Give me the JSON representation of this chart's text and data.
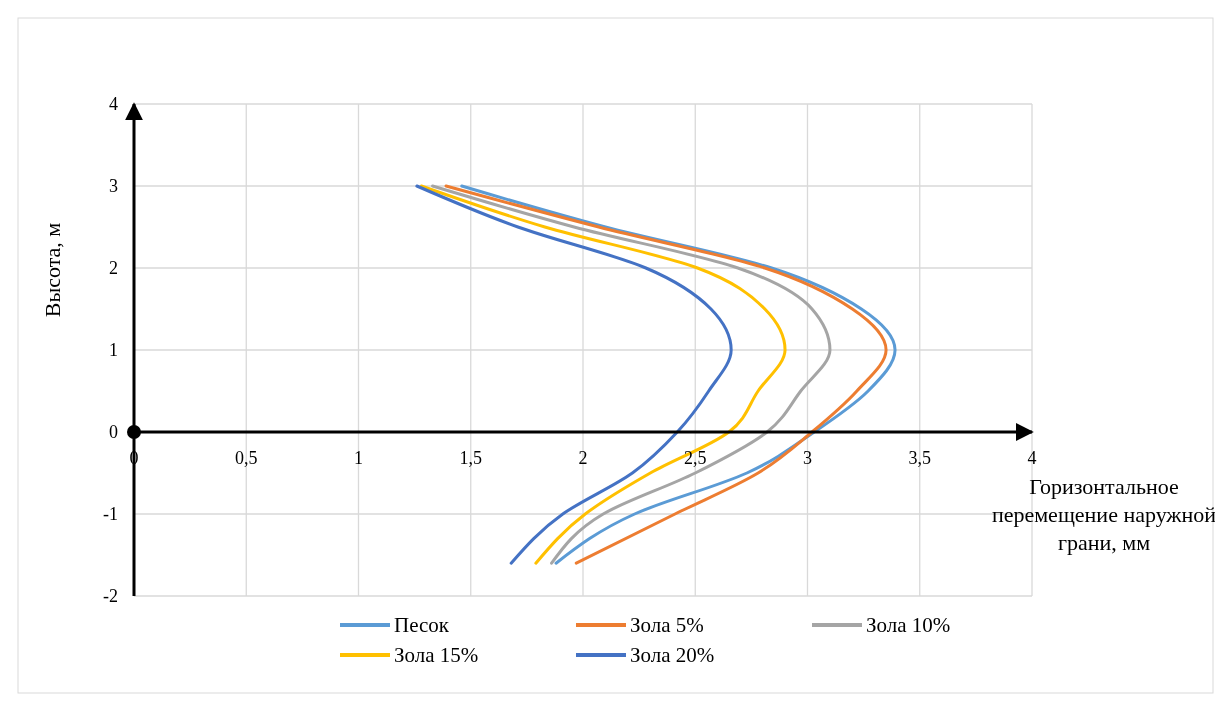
{
  "chart_data": {
    "type": "line",
    "ylabel": "Высота, м",
    "xlabel": "Горизонтальное перемещение наружной грани, мм",
    "xlim": [
      0,
      4
    ],
    "xticks": [
      0,
      {
        "value": 0.5,
        "label": "0,5"
      },
      1,
      {
        "value": 1.5,
        "label": "1,5"
      },
      2,
      {
        "value": 2.5,
        "label": "2,5"
      },
      3,
      {
        "value": 3.5,
        "label": "3,5"
      },
      4
    ],
    "ylim": [
      -2,
      4
    ],
    "yticks": [
      -2,
      -1,
      0,
      1,
      2,
      3,
      4
    ],
    "grid": true,
    "legend": "bottom",
    "marker": "none",
    "line_style": "solid",
    "series": [
      {
        "name": "Песок",
        "color": "#5b9bd5",
        "x": [
          1.46,
          2.1,
          2.84,
          3.24,
          3.39,
          3.27,
          3.03,
          2.73,
          2.23,
          1.88
        ],
        "values": [
          3,
          2.5,
          2,
          1.5,
          1,
          0.5,
          0,
          -0.5,
          -1,
          -1.6
        ]
      },
      {
        "name": "Зола 5%",
        "color": "#ed7d31",
        "x": [
          1.39,
          2.07,
          2.81,
          3.2,
          3.35,
          3.22,
          3.02,
          2.78,
          2.41,
          1.97
        ],
        "values": [
          3,
          2.5,
          2,
          1.5,
          1,
          0.5,
          0,
          -0.5,
          -1,
          -1.6
        ]
      },
      {
        "name": "Зола 10%",
        "color": "#a5a5a5",
        "x": [
          1.33,
          1.96,
          2.69,
          3.02,
          3.1,
          2.97,
          2.82,
          2.5,
          2.09,
          1.86
        ],
        "values": [
          3,
          2.5,
          2,
          1.5,
          1,
          0.5,
          0,
          -0.5,
          -1,
          -1.6
        ]
      },
      {
        "name": "Зола 15%",
        "color": "#ffc000",
        "x": [
          1.28,
          1.83,
          2.51,
          2.81,
          2.9,
          2.78,
          2.65,
          2.3,
          2.01,
          1.79
        ],
        "values": [
          3,
          2.5,
          2,
          1.5,
          1,
          0.5,
          0,
          -0.5,
          -1,
          -1.6
        ]
      },
      {
        "name": "Зола 20%",
        "color": "#4472c4",
        "x": [
          1.26,
          1.71,
          2.28,
          2.57,
          2.66,
          2.56,
          2.42,
          2.22,
          1.91,
          1.68
        ],
        "values": [
          3,
          2.5,
          2,
          1.5,
          1,
          0.5,
          0,
          -0.5,
          -1,
          -1.6
        ]
      }
    ]
  }
}
